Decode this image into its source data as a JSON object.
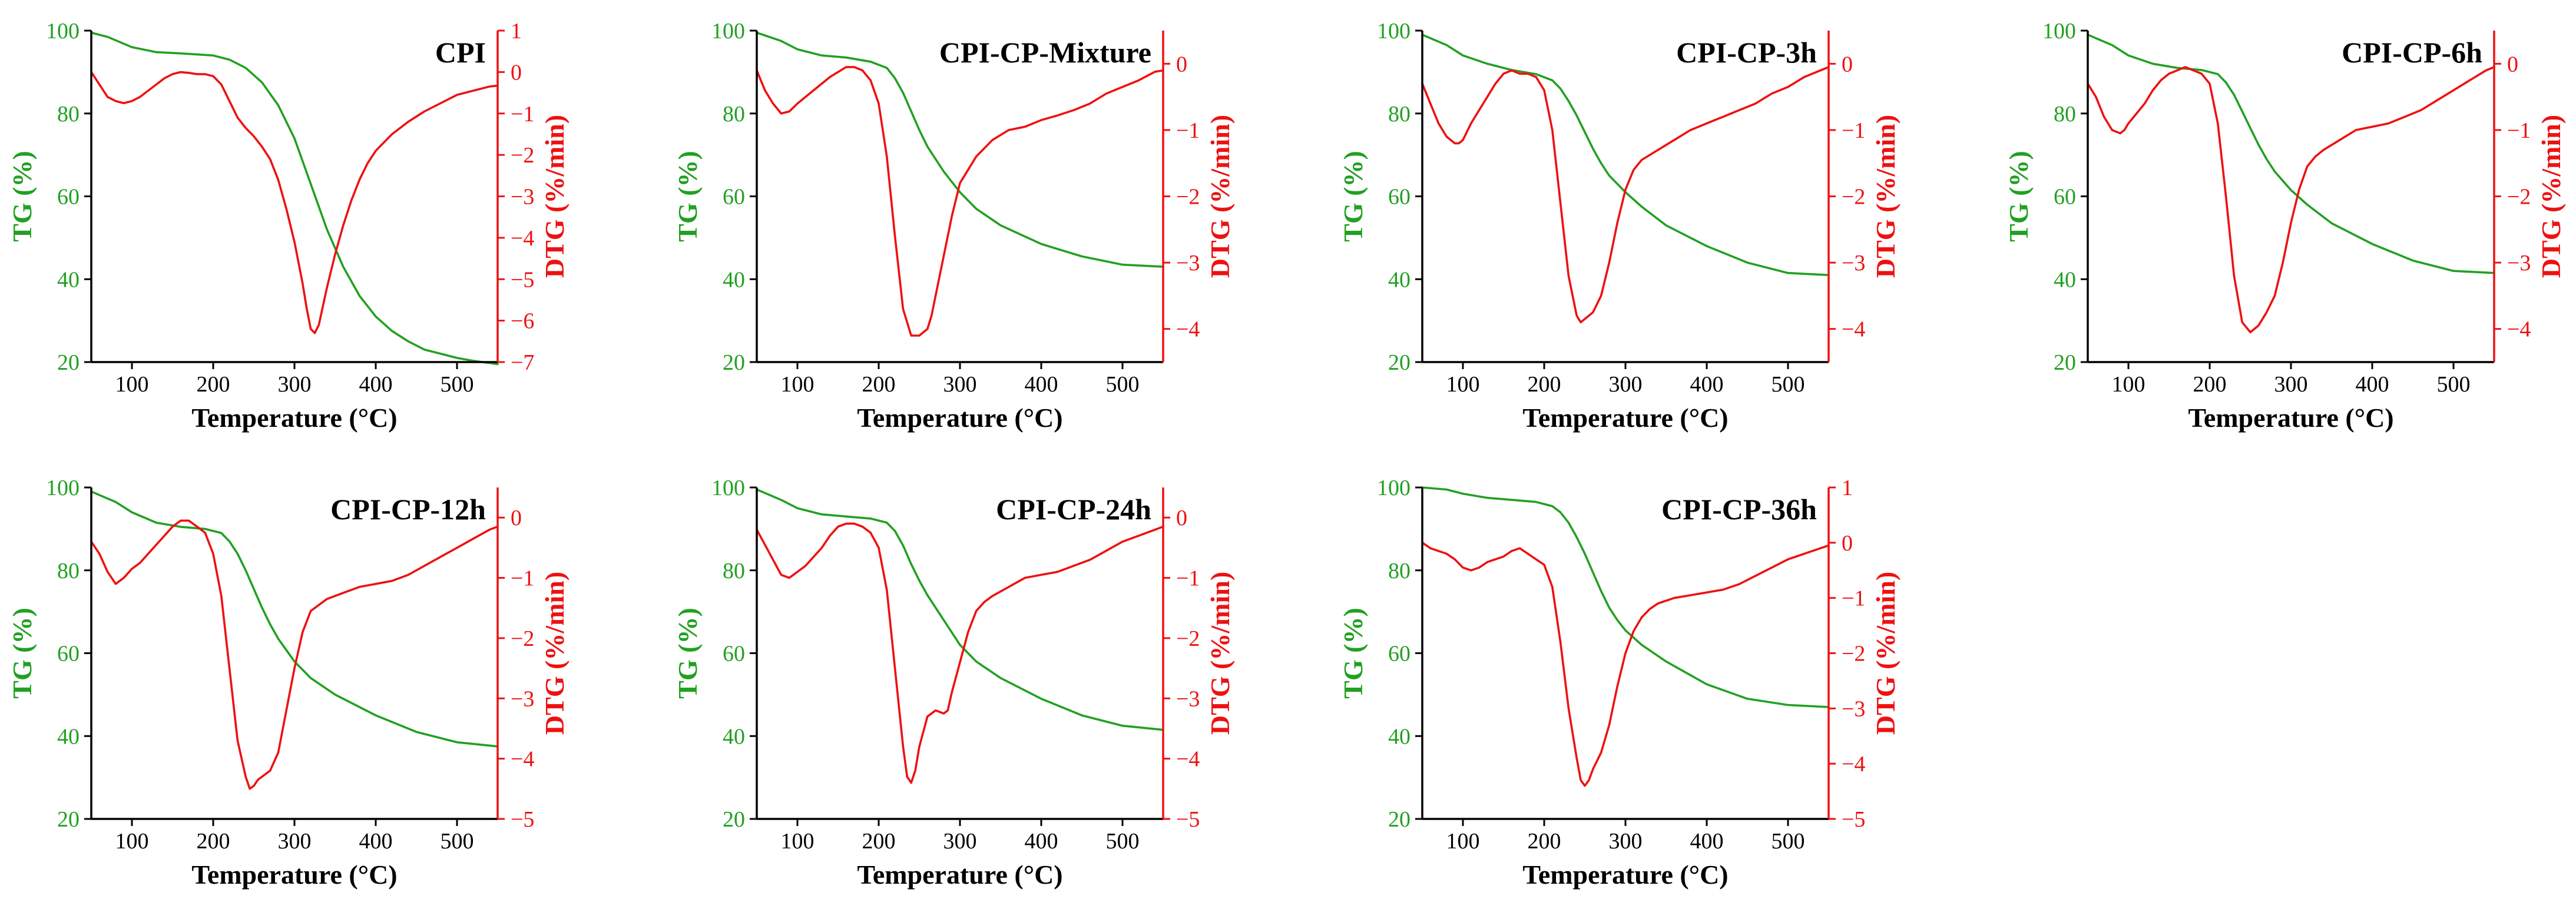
{
  "colors": {
    "tg": "#22a022",
    "dtg": "#ee1111",
    "axis": "#000000"
  },
  "common": {
    "xlabel": "Temperature (°C)",
    "ylabel_left": "TG (%)",
    "ylabel_right": "DTG (%/min)",
    "xlim": [
      50,
      550
    ],
    "xticks": [
      100,
      200,
      300,
      400,
      500
    ],
    "tg_ylim": [
      20,
      100
    ],
    "tg_yticks": [
      20,
      40,
      60,
      80,
      100
    ]
  },
  "chart_data": [
    {
      "type": "line",
      "title": "CPI",
      "dtg_ylim": [
        -7,
        1
      ],
      "dtg_yticks": [
        1,
        0,
        -1,
        -2,
        -3,
        -4,
        -5,
        -6,
        -7
      ],
      "series": [
        {
          "name": "TG",
          "axis": "left",
          "x": [
            50,
            70,
            100,
            130,
            160,
            200,
            220,
            240,
            260,
            280,
            300,
            320,
            340,
            360,
            380,
            400,
            420,
            440,
            460,
            480,
            500,
            520,
            550
          ],
          "y": [
            99.5,
            98.5,
            96,
            94.8,
            94.5,
            94,
            93,
            91,
            87.5,
            82,
            74,
            63,
            52,
            43,
            36,
            31,
            27.5,
            25,
            23,
            22,
            21,
            20.3,
            19.5
          ]
        },
        {
          "name": "DTG",
          "axis": "right",
          "x": [
            50,
            60,
            70,
            80,
            90,
            100,
            110,
            120,
            130,
            140,
            150,
            160,
            170,
            180,
            190,
            200,
            210,
            220,
            230,
            240,
            250,
            260,
            270,
            280,
            290,
            300,
            310,
            315,
            320,
            325,
            330,
            340,
            350,
            360,
            370,
            380,
            390,
            400,
            420,
            440,
            460,
            480,
            500,
            520,
            540,
            550
          ],
          "y": [
            0,
            -0.3,
            -0.6,
            -0.7,
            -0.75,
            -0.7,
            -0.6,
            -0.45,
            -0.3,
            -0.15,
            -0.05,
            0,
            -0.02,
            -0.05,
            -0.05,
            -0.1,
            -0.3,
            -0.7,
            -1.1,
            -1.35,
            -1.55,
            -1.8,
            -2.1,
            -2.6,
            -3.3,
            -4.1,
            -5.1,
            -5.7,
            -6.2,
            -6.3,
            -6.1,
            -5.2,
            -4.4,
            -3.7,
            -3.1,
            -2.6,
            -2.2,
            -1.9,
            -1.5,
            -1.2,
            -0.95,
            -0.75,
            -0.55,
            -0.45,
            -0.35,
            -0.33
          ]
        }
      ]
    },
    {
      "type": "line",
      "title": "CPI-CP-Mixture",
      "dtg_ylim": [
        -4.5,
        0.5
      ],
      "dtg_yticks": [
        0,
        -1,
        -2,
        -3,
        -4
      ],
      "series": [
        {
          "name": "TG",
          "axis": "left",
          "x": [
            50,
            80,
            100,
            130,
            160,
            190,
            210,
            220,
            230,
            240,
            250,
            260,
            270,
            280,
            300,
            320,
            350,
            400,
            450,
            500,
            550
          ],
          "y": [
            99.5,
            97.5,
            95.5,
            94,
            93.5,
            92.5,
            91,
            88.5,
            85,
            80.5,
            76,
            72,
            69,
            66,
            61,
            57,
            53,
            48.5,
            45.5,
            43.5,
            43
          ]
        },
        {
          "name": "DTG",
          "axis": "right",
          "x": [
            50,
            60,
            70,
            80,
            90,
            100,
            120,
            140,
            160,
            170,
            180,
            190,
            200,
            210,
            220,
            230,
            240,
            250,
            260,
            265,
            270,
            280,
            290,
            300,
            320,
            340,
            360,
            380,
            400,
            420,
            440,
            460,
            480,
            500,
            520,
            540,
            550
          ],
          "y": [
            -0.1,
            -0.4,
            -0.6,
            -0.75,
            -0.72,
            -0.6,
            -0.4,
            -0.2,
            -0.05,
            -0.05,
            -0.1,
            -0.25,
            -0.6,
            -1.4,
            -2.6,
            -3.7,
            -4.1,
            -4.1,
            -4.0,
            -3.8,
            -3.5,
            -2.9,
            -2.3,
            -1.8,
            -1.4,
            -1.15,
            -1.0,
            -0.95,
            -0.85,
            -0.78,
            -0.7,
            -0.6,
            -0.45,
            -0.35,
            -0.25,
            -0.12,
            -0.1
          ]
        }
      ]
    },
    {
      "type": "line",
      "title": "CPI-CP-3h",
      "dtg_ylim": [
        -4.5,
        0.5
      ],
      "dtg_yticks": [
        0,
        -1,
        -2,
        -3,
        -4
      ],
      "series": [
        {
          "name": "TG",
          "axis": "left",
          "x": [
            50,
            80,
            100,
            130,
            160,
            190,
            210,
            220,
            230,
            240,
            250,
            260,
            270,
            280,
            300,
            320,
            350,
            400,
            450,
            500,
            550
          ],
          "y": [
            99,
            96.5,
            94,
            92,
            90.5,
            89.5,
            88,
            86,
            83,
            79.5,
            75.5,
            71.5,
            68,
            65,
            61,
            57.5,
            53,
            48,
            44,
            41.5,
            41
          ]
        },
        {
          "name": "DTG",
          "axis": "right",
          "x": [
            50,
            60,
            70,
            80,
            90,
            95,
            100,
            110,
            120,
            130,
            140,
            150,
            160,
            170,
            180,
            190,
            200,
            210,
            220,
            230,
            240,
            245,
            250,
            260,
            270,
            280,
            290,
            300,
            310,
            320,
            340,
            360,
            380,
            400,
            420,
            440,
            460,
            480,
            500,
            520,
            540,
            550
          ],
          "y": [
            -0.3,
            -0.6,
            -0.9,
            -1.1,
            -1.2,
            -1.2,
            -1.15,
            -0.9,
            -0.7,
            -0.5,
            -0.3,
            -0.15,
            -0.1,
            -0.15,
            -0.15,
            -0.2,
            -0.4,
            -1.0,
            -2.1,
            -3.2,
            -3.8,
            -3.9,
            -3.85,
            -3.75,
            -3.5,
            -3.0,
            -2.4,
            -1.9,
            -1.6,
            -1.45,
            -1.3,
            -1.15,
            -1.0,
            -0.9,
            -0.8,
            -0.7,
            -0.6,
            -0.45,
            -0.35,
            -0.2,
            -0.1,
            -0.05
          ]
        }
      ]
    },
    {
      "type": "line",
      "title": "CPI-CP-6h",
      "dtg_ylim": [
        -4.5,
        0.5
      ],
      "dtg_yticks": [
        0,
        -1,
        -2,
        -3,
        -4
      ],
      "series": [
        {
          "name": "TG",
          "axis": "left",
          "x": [
            50,
            80,
            100,
            130,
            160,
            190,
            210,
            220,
            230,
            240,
            250,
            260,
            270,
            280,
            300,
            320,
            350,
            400,
            450,
            500,
            550
          ],
          "y": [
            99,
            96.5,
            94,
            92,
            91,
            90.5,
            89.5,
            87.5,
            84.5,
            80.5,
            76.5,
            72.5,
            69,
            66,
            61.5,
            58,
            53.5,
            48.5,
            44.5,
            42,
            41.5
          ]
        },
        {
          "name": "DTG",
          "axis": "right",
          "x": [
            50,
            60,
            70,
            80,
            90,
            95,
            100,
            110,
            120,
            130,
            140,
            150,
            160,
            170,
            180,
            190,
            200,
            210,
            220,
            230,
            240,
            250,
            260,
            270,
            280,
            290,
            300,
            310,
            320,
            330,
            340,
            360,
            380,
            400,
            420,
            440,
            460,
            480,
            500,
            520,
            540,
            550
          ],
          "y": [
            -0.3,
            -0.5,
            -0.8,
            -1.0,
            -1.05,
            -1.0,
            -0.9,
            -0.75,
            -0.6,
            -0.4,
            -0.25,
            -0.15,
            -0.1,
            -0.05,
            -0.1,
            -0.15,
            -0.3,
            -0.9,
            -2.0,
            -3.2,
            -3.9,
            -4.05,
            -3.95,
            -3.75,
            -3.5,
            -3.0,
            -2.4,
            -1.9,
            -1.55,
            -1.4,
            -1.3,
            -1.15,
            -1.0,
            -0.95,
            -0.9,
            -0.8,
            -0.7,
            -0.55,
            -0.4,
            -0.25,
            -0.1,
            -0.05
          ]
        }
      ]
    },
    {
      "type": "line",
      "title": "CPI-CP-12h",
      "dtg_ylim": [
        -5,
        0.5
      ],
      "dtg_yticks": [
        0,
        -1,
        -2,
        -3,
        -4,
        -5
      ],
      "series": [
        {
          "name": "TG",
          "axis": "left",
          "x": [
            50,
            80,
            100,
            130,
            160,
            190,
            210,
            220,
            230,
            240,
            250,
            260,
            270,
            280,
            300,
            320,
            350,
            400,
            450,
            500,
            550
          ],
          "y": [
            99,
            96.5,
            94,
            91.5,
            90.5,
            90,
            89,
            87,
            84,
            80,
            75.5,
            71,
            67,
            63.5,
            58,
            54,
            50,
            45,
            41,
            38.5,
            37.5
          ]
        },
        {
          "name": "DTG",
          "axis": "right",
          "x": [
            50,
            60,
            70,
            80,
            90,
            100,
            110,
            120,
            130,
            140,
            150,
            160,
            170,
            180,
            190,
            200,
            210,
            220,
            230,
            240,
            245,
            250,
            255,
            260,
            270,
            280,
            290,
            300,
            310,
            320,
            330,
            340,
            360,
            380,
            400,
            420,
            440,
            460,
            480,
            500,
            520,
            540,
            550
          ],
          "y": [
            -0.4,
            -0.6,
            -0.9,
            -1.1,
            -1.0,
            -0.85,
            -0.75,
            -0.6,
            -0.45,
            -0.3,
            -0.15,
            -0.05,
            -0.05,
            -0.15,
            -0.25,
            -0.6,
            -1.3,
            -2.5,
            -3.7,
            -4.3,
            -4.5,
            -4.45,
            -4.35,
            -4.3,
            -4.2,
            -3.9,
            -3.2,
            -2.5,
            -1.9,
            -1.55,
            -1.45,
            -1.35,
            -1.25,
            -1.15,
            -1.1,
            -1.05,
            -0.95,
            -0.8,
            -0.65,
            -0.5,
            -0.35,
            -0.2,
            -0.15
          ]
        }
      ]
    },
    {
      "type": "line",
      "title": "CPI-CP-24h",
      "dtg_ylim": [
        -5,
        0.5
      ],
      "dtg_yticks": [
        0,
        -1,
        -2,
        -3,
        -4,
        -5
      ],
      "series": [
        {
          "name": "TG",
          "axis": "left",
          "x": [
            50,
            80,
            100,
            130,
            160,
            190,
            210,
            220,
            230,
            240,
            250,
            260,
            270,
            280,
            290,
            300,
            320,
            350,
            400,
            450,
            500,
            550
          ],
          "y": [
            99.5,
            97,
            95,
            93.5,
            93,
            92.5,
            91.5,
            89.5,
            86,
            81.5,
            77.5,
            74,
            71,
            68,
            65,
            62,
            58,
            54,
            49,
            45,
            42.5,
            41.5
          ]
        },
        {
          "name": "DTG",
          "axis": "right",
          "x": [
            50,
            60,
            70,
            80,
            90,
            100,
            110,
            120,
            130,
            140,
            150,
            160,
            170,
            180,
            190,
            200,
            210,
            220,
            230,
            235,
            240,
            245,
            250,
            260,
            270,
            280,
            285,
            290,
            300,
            310,
            320,
            330,
            340,
            360,
            380,
            400,
            420,
            440,
            460,
            480,
            500,
            520,
            540,
            550
          ],
          "y": [
            -0.2,
            -0.45,
            -0.7,
            -0.95,
            -1.0,
            -0.9,
            -0.8,
            -0.65,
            -0.5,
            -0.3,
            -0.15,
            -0.1,
            -0.1,
            -0.15,
            -0.25,
            -0.5,
            -1.2,
            -2.5,
            -3.8,
            -4.3,
            -4.4,
            -4.2,
            -3.8,
            -3.3,
            -3.2,
            -3.25,
            -3.2,
            -2.9,
            -2.4,
            -1.9,
            -1.55,
            -1.4,
            -1.3,
            -1.15,
            -1.0,
            -0.95,
            -0.9,
            -0.8,
            -0.7,
            -0.55,
            -0.4,
            -0.3,
            -0.2,
            -0.15
          ]
        }
      ]
    },
    {
      "type": "line",
      "title": "CPI-CP-36h",
      "dtg_ylim": [
        -5,
        1
      ],
      "dtg_yticks": [
        1,
        0,
        -1,
        -2,
        -3,
        -4,
        -5
      ],
      "series": [
        {
          "name": "TG",
          "axis": "left",
          "x": [
            50,
            80,
            100,
            130,
            160,
            190,
            210,
            220,
            230,
            240,
            250,
            260,
            270,
            280,
            290,
            300,
            320,
            350,
            400,
            450,
            500,
            550
          ],
          "y": [
            100,
            99.5,
            98.5,
            97.5,
            97,
            96.5,
            95.5,
            94,
            91.5,
            88,
            84,
            79.5,
            75,
            71,
            68,
            65.5,
            62,
            58,
            52.5,
            49,
            47.5,
            47
          ]
        },
        {
          "name": "DTG",
          "axis": "right",
          "x": [
            50,
            60,
            70,
            80,
            90,
            100,
            110,
            120,
            130,
            140,
            150,
            160,
            170,
            180,
            190,
            200,
            210,
            220,
            230,
            240,
            245,
            250,
            255,
            260,
            270,
            280,
            290,
            300,
            310,
            320,
            330,
            340,
            360,
            380,
            400,
            420,
            440,
            460,
            480,
            500,
            520,
            540,
            550
          ],
          "y": [
            0,
            -0.1,
            -0.15,
            -0.2,
            -0.3,
            -0.45,
            -0.5,
            -0.45,
            -0.35,
            -0.3,
            -0.25,
            -0.15,
            -0.1,
            -0.2,
            -0.3,
            -0.4,
            -0.8,
            -1.8,
            -3.0,
            -3.9,
            -4.3,
            -4.4,
            -4.3,
            -4.1,
            -3.8,
            -3.3,
            -2.6,
            -2.0,
            -1.6,
            -1.35,
            -1.2,
            -1.1,
            -1.0,
            -0.95,
            -0.9,
            -0.85,
            -0.75,
            -0.6,
            -0.45,
            -0.3,
            -0.2,
            -0.1,
            -0.05
          ]
        }
      ]
    }
  ]
}
